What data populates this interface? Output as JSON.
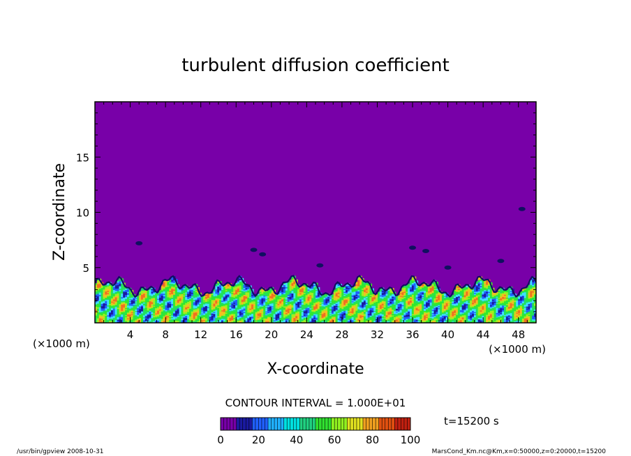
{
  "chart_data": {
    "type": "heatmap",
    "title": "turbulent diffusion coefficient",
    "xlabel": "X-coordinate",
    "ylabel": "Z-coordinate",
    "x_unit_left": "(×1000 m)",
    "x_unit_right": "(×1000 m)",
    "xlim": [
      0,
      50
    ],
    "ylim": [
      0,
      20
    ],
    "x_ticks": [
      4,
      8,
      12,
      16,
      20,
      24,
      28,
      32,
      36,
      40,
      44,
      48
    ],
    "y_ticks": [
      5,
      10,
      15
    ],
    "contour_interval_text": "CONTOUR INTERVAL = 1.000E+01",
    "time_label": "t=15200 s",
    "colorbar": {
      "min": 0,
      "max": 100,
      "ticks": [
        0,
        20,
        40,
        60,
        80,
        100
      ],
      "colors": [
        "#7800a8",
        "#1a1aa0",
        "#2060ff",
        "#20b0ff",
        "#00e0e0",
        "#20d080",
        "#30e030",
        "#90f020",
        "#e0e020",
        "#f0a020",
        "#e05010",
        "#c02010"
      ]
    },
    "background_value": 0,
    "background_color": "#7800a8",
    "field_color_ramp": [
      "#1a1aa0",
      "#2060ff",
      "#40e0ff",
      "#20e060",
      "#30e830",
      "#a0f020",
      "#f0c020",
      "#f07020"
    ]
  },
  "footer": {
    "left": "/usr/bin/gpview   2008-10-31",
    "right": "MarsCond_Km.nc@Km,x=0:50000,z=0:20000,t=15200"
  }
}
